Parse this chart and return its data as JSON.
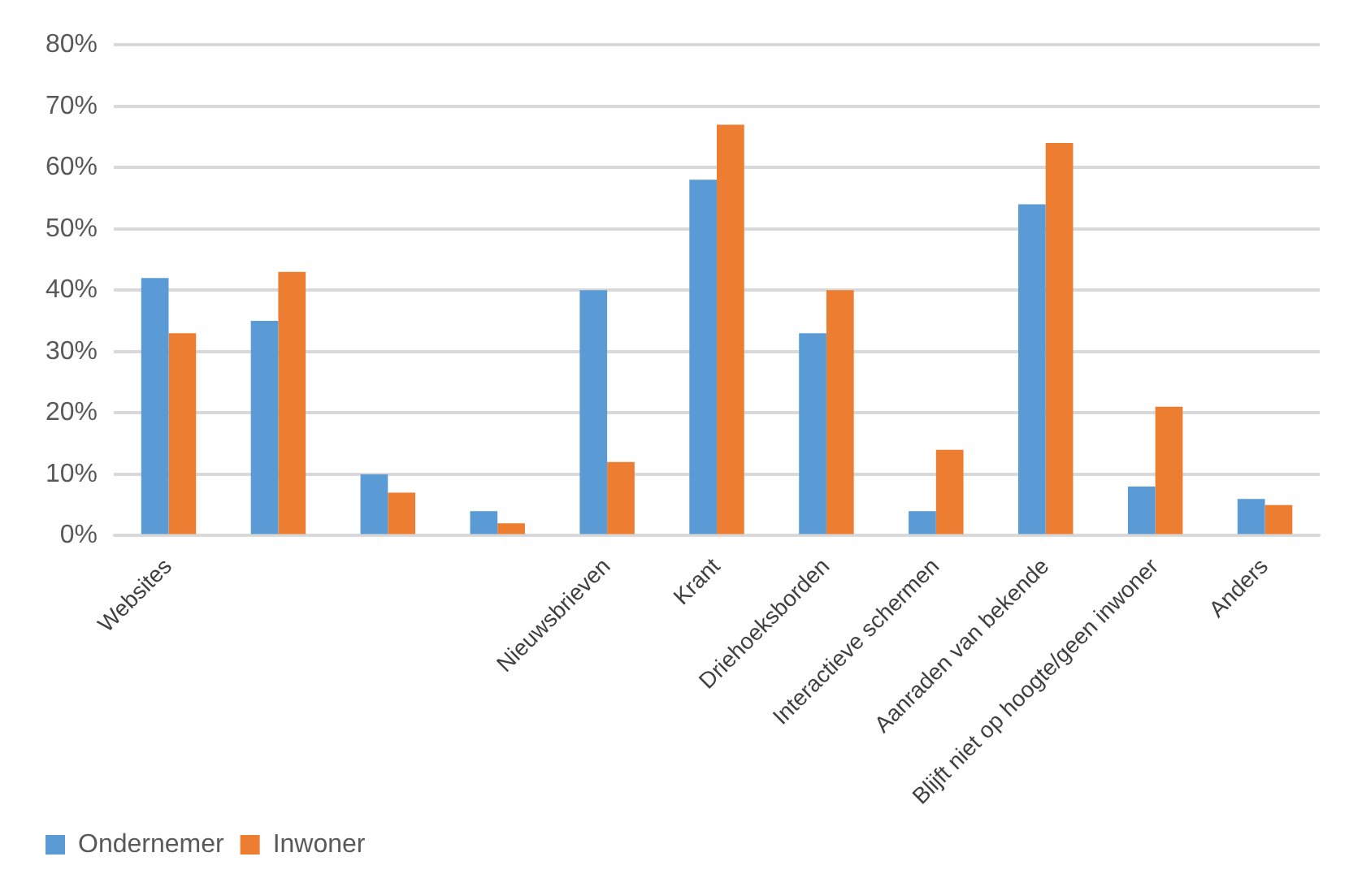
{
  "chart_data": {
    "type": "bar",
    "categories": [
      "Websites",
      null,
      null,
      null,
      "Nieuwsbrieven",
      "Krant",
      "Driehoeksborden",
      "Interactieve schermen",
      "Aanraden van bekende",
      "Blijft niet op hoogte/geen inwoner",
      "Anders"
    ],
    "series": [
      {
        "name": "Ondernemer",
        "color": "#5b9bd5",
        "values": [
          42,
          35,
          10,
          4,
          40,
          58,
          33,
          4,
          54,
          8,
          6
        ]
      },
      {
        "name": "Inwoner",
        "color": "#ed7d31",
        "values": [
          33,
          43,
          7,
          2,
          12,
          67,
          40,
          14,
          64,
          21,
          5
        ]
      }
    ],
    "ylim": [
      0,
      80
    ],
    "yticks": [
      {
        "value": 0,
        "label": "0%"
      },
      {
        "value": 10,
        "label": "10%"
      },
      {
        "value": 20,
        "label": "20%"
      },
      {
        "value": 30,
        "label": "30%"
      },
      {
        "value": 40,
        "label": "40%"
      },
      {
        "value": 50,
        "label": "50%"
      },
      {
        "value": 60,
        "label": "60%"
      },
      {
        "value": 70,
        "label": "70%"
      },
      {
        "value": 80,
        "label": "80%"
      }
    ],
    "grid": "y",
    "legend": "bottom left"
  }
}
